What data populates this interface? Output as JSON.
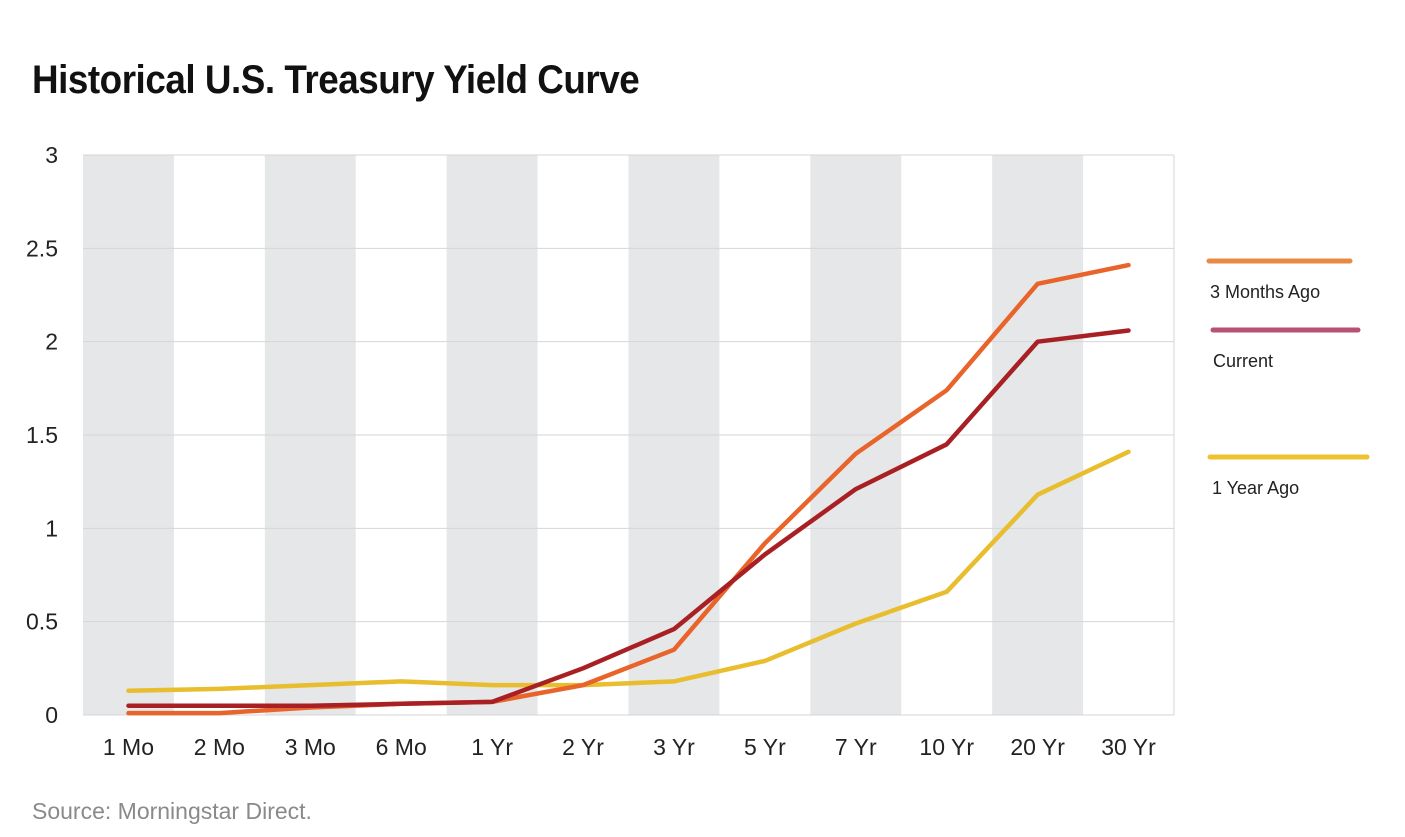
{
  "title": "Historical U.S. Treasury Yield Curve",
  "source": "Source: Morningstar Direct.",
  "chart_data": {
    "type": "line",
    "title": "Historical U.S. Treasury Yield Curve",
    "xlabel": "",
    "ylabel": "",
    "categories": [
      "1 Mo",
      "2 Mo",
      "3 Mo",
      "6 Mo",
      "1 Yr",
      "2 Yr",
      "3 Yr",
      "5 Yr",
      "7 Yr",
      "10 Yr",
      "20 Yr",
      "30 Yr"
    ],
    "ylim": [
      0,
      3
    ],
    "yticks": [
      0,
      0.5,
      1,
      1.5,
      2,
      2.5,
      3
    ],
    "ytick_labels": [
      "0",
      "0.5",
      "1",
      "1.5",
      "2",
      "2.5",
      "3"
    ],
    "legend_position": "right",
    "series": [
      {
        "name": "1 Year Ago",
        "color": "#E8BD2E",
        "values": [
          0.13,
          0.14,
          0.16,
          0.18,
          0.16,
          0.16,
          0.18,
          0.29,
          0.49,
          0.66,
          1.18,
          1.41
        ]
      },
      {
        "name": "3 Months Ago",
        "color": "#E8642A",
        "values": [
          0.01,
          0.01,
          0.04,
          0.06,
          0.07,
          0.16,
          0.35,
          0.92,
          1.4,
          1.74,
          2.31,
          2.41
        ]
      },
      {
        "name": "Current",
        "color": "#A82024",
        "values": [
          0.05,
          0.05,
          0.05,
          0.06,
          0.07,
          0.25,
          0.46,
          0.86,
          1.21,
          1.45,
          2.0,
          2.06
        ]
      }
    ],
    "legend": [
      {
        "label": "3 Months Ago",
        "color": "#E98A44"
      },
      {
        "label": "Current",
        "color": "#B55276"
      },
      {
        "label": "1 Year Ago",
        "color": "#EFC12F"
      }
    ]
  }
}
